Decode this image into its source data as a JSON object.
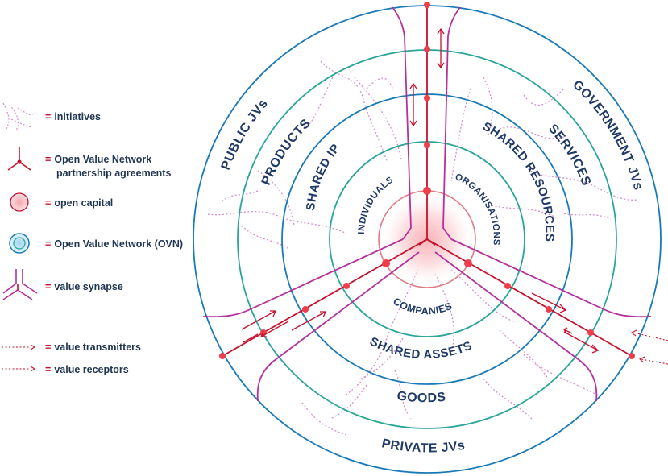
{
  "legend": {
    "items": [
      {
        "label": "initiatives",
        "icon": "initiatives-icon"
      },
      {
        "label": "Open Value Network",
        "label2": "partnership agreements",
        "icon": "partnership-agreement-icon"
      },
      {
        "label": "open capital",
        "icon": "open-capital-icon"
      },
      {
        "label": "Open Value Network (OVN)",
        "icon": "ovn-icon"
      },
      {
        "label": "value synapse",
        "icon": "value-synapse-icon"
      },
      {
        "label": "value transmitters",
        "icon": "value-transmitter-icon"
      },
      {
        "label": "value receptors",
        "icon": "value-receptor-icon"
      }
    ],
    "eq": "="
  },
  "rings": {
    "inner": {
      "individuals": "INDIVIDUALS",
      "organisations": "ORGANISATIONS",
      "companies": "COMPANIES"
    },
    "second": {
      "shared_ip": "SHARED IP",
      "shared_resources": "SHARED RESOURCES",
      "shared_assets": "SHARED ASSETS"
    },
    "third": {
      "products": "PRODUCTS",
      "services": "SERVICES",
      "goods": "GOODS"
    },
    "outer": {
      "public_jvs": "PUBLIC JVs",
      "government_jvs": "GOVERNMENT JVs",
      "private_jvs": "PRIVATE JVs"
    }
  },
  "colors": {
    "ring_blue": "#1a7ab8",
    "ring_teal": "#2aa59a",
    "red": "#c8102e",
    "node": "#ef3e4a",
    "synapse": "#b5319b",
    "initiative": "#d58fcf",
    "text": "#1f3a66"
  }
}
